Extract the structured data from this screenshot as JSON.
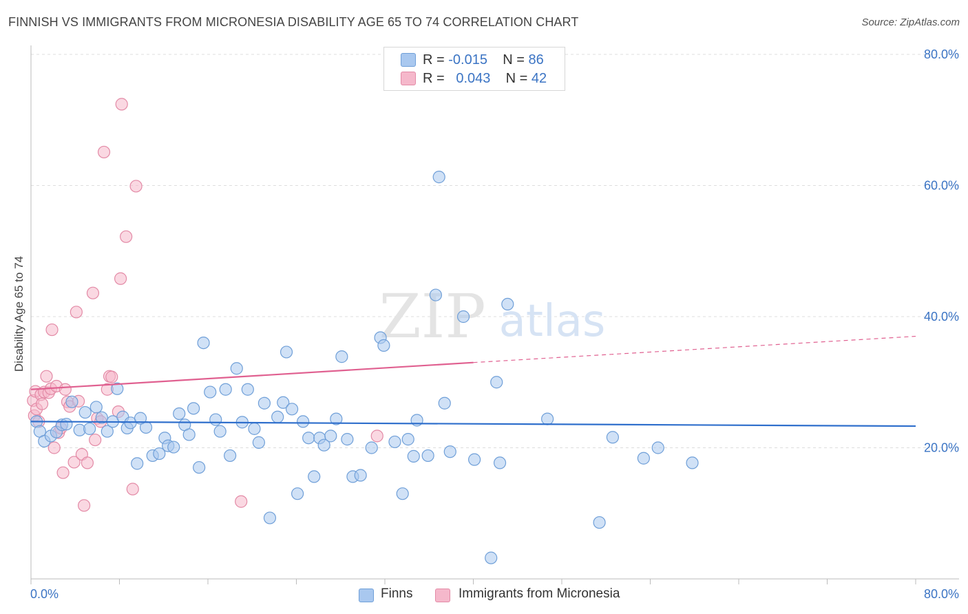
{
  "title": "FINNISH VS IMMIGRANTS FROM MICRONESIA DISABILITY AGE 65 TO 74 CORRELATION CHART",
  "source": "Source: ZipAtlas.com",
  "watermark": {
    "zip": "ZIP",
    "atlas": "atlas"
  },
  "legend": {
    "r_label": "R =",
    "n_label": "N =",
    "series": [
      {
        "name": "Finns",
        "r": "-0.015",
        "n": "86",
        "color": "#a9c8ef",
        "stroke": "#6f9fd8"
      },
      {
        "name": "Immigrants from Micronesia",
        "r": " 0.043",
        "n": "42",
        "color": "#f5b8cb",
        "stroke": "#e38aa6"
      }
    ]
  },
  "chart_data": {
    "type": "scatter",
    "title": "FINNISH VS IMMIGRANTS FROM MICRONESIA DISABILITY AGE 65 TO 74 CORRELATION CHART",
    "xlabel": "",
    "ylabel": "Disability Age 65 to 74",
    "xlim": [
      0,
      80
    ],
    "ylim": [
      0,
      80
    ],
    "x_tick_labels": [
      "0.0%",
      "80.0%"
    ],
    "y_tick_labels": [
      "20.0%",
      "40.0%",
      "60.0%",
      "80.0%"
    ],
    "y_ticks": [
      20,
      40,
      60,
      80
    ],
    "series": [
      {
        "name": "Finns",
        "color": "#a9c8ef",
        "stroke": "#6f9fd8",
        "trend": {
          "x": [
            0,
            80
          ],
          "y": [
            24.0,
            23.3
          ],
          "color": "#2f6fcc"
        },
        "points": [
          [
            0.5,
            24.0
          ],
          [
            0.8,
            22.5
          ],
          [
            1.2,
            21.0
          ],
          [
            1.8,
            21.8
          ],
          [
            2.3,
            22.4
          ],
          [
            2.8,
            23.5
          ],
          [
            3.2,
            23.6
          ],
          [
            3.7,
            27.0
          ],
          [
            4.4,
            22.7
          ],
          [
            4.9,
            25.4
          ],
          [
            5.3,
            22.9
          ],
          [
            5.9,
            26.2
          ],
          [
            6.4,
            24.6
          ],
          [
            6.9,
            22.5
          ],
          [
            7.4,
            24.0
          ],
          [
            7.8,
            29.0
          ],
          [
            8.3,
            24.7
          ],
          [
            8.7,
            23.0
          ],
          [
            9.0,
            23.8
          ],
          [
            9.6,
            17.6
          ],
          [
            10.4,
            23.1
          ],
          [
            11.0,
            18.8
          ],
          [
            11.6,
            19.1
          ],
          [
            12.1,
            21.5
          ],
          [
            12.4,
            20.3
          ],
          [
            12.9,
            20.1
          ],
          [
            13.4,
            25.2
          ],
          [
            13.9,
            23.5
          ],
          [
            14.3,
            22.0
          ],
          [
            14.7,
            26.0
          ],
          [
            15.2,
            17.0
          ],
          [
            15.6,
            36.0
          ],
          [
            16.2,
            28.5
          ],
          [
            16.7,
            24.3
          ],
          [
            17.1,
            22.5
          ],
          [
            17.6,
            28.9
          ],
          [
            18.0,
            18.8
          ],
          [
            18.6,
            32.1
          ],
          [
            19.1,
            23.9
          ],
          [
            19.6,
            28.9
          ],
          [
            20.2,
            22.9
          ],
          [
            20.6,
            20.8
          ],
          [
            21.1,
            26.8
          ],
          [
            21.6,
            9.3
          ],
          [
            22.3,
            24.7
          ],
          [
            22.8,
            26.9
          ],
          [
            23.1,
            34.6
          ],
          [
            23.6,
            25.9
          ],
          [
            24.1,
            13.0
          ],
          [
            24.6,
            24.0
          ],
          [
            25.1,
            21.5
          ],
          [
            25.6,
            15.6
          ],
          [
            26.1,
            21.5
          ],
          [
            26.5,
            20.4
          ],
          [
            27.1,
            21.8
          ],
          [
            27.6,
            24.4
          ],
          [
            28.1,
            33.9
          ],
          [
            28.6,
            21.3
          ],
          [
            29.1,
            15.6
          ],
          [
            29.8,
            15.8
          ],
          [
            30.8,
            20.0
          ],
          [
            31.6,
            36.8
          ],
          [
            31.9,
            35.6
          ],
          [
            32.9,
            20.9
          ],
          [
            33.6,
            13.0
          ],
          [
            34.1,
            21.3
          ],
          [
            34.6,
            18.7
          ],
          [
            34.9,
            24.2
          ],
          [
            35.9,
            18.8
          ],
          [
            36.6,
            43.3
          ],
          [
            36.9,
            61.3
          ],
          [
            37.4,
            26.8
          ],
          [
            37.9,
            19.4
          ],
          [
            39.1,
            40.0
          ],
          [
            40.1,
            18.2
          ],
          [
            42.1,
            30.0
          ],
          [
            42.4,
            17.7
          ],
          [
            43.1,
            41.9
          ],
          [
            46.7,
            24.4
          ],
          [
            51.4,
            8.6
          ],
          [
            52.6,
            21.6
          ],
          [
            55.4,
            18.4
          ],
          [
            56.7,
            20.0
          ],
          [
            59.8,
            17.7
          ],
          [
            41.6,
            3.2
          ],
          [
            9.9,
            24.5
          ]
        ]
      },
      {
        "name": "Immigrants from Micronesia",
        "color": "#f5b8cb",
        "stroke": "#e38aa6",
        "trend": {
          "x": [
            0,
            40
          ],
          "y": [
            28.9,
            33.0
          ],
          "color": "#e06090",
          "dash_to": [
            80,
            37.0
          ]
        },
        "points": [
          [
            0.2,
            27.2
          ],
          [
            0.3,
            24.9
          ],
          [
            0.4,
            28.6
          ],
          [
            0.5,
            25.9
          ],
          [
            0.7,
            24.0
          ],
          [
            0.9,
            28.1
          ],
          [
            1.0,
            26.7
          ],
          [
            1.2,
            28.5
          ],
          [
            1.4,
            30.9
          ],
          [
            1.6,
            28.4
          ],
          [
            1.8,
            29.0
          ],
          [
            2.1,
            20.0
          ],
          [
            2.3,
            29.4
          ],
          [
            2.5,
            22.3
          ],
          [
            2.7,
            23.0
          ],
          [
            2.9,
            16.2
          ],
          [
            3.1,
            28.9
          ],
          [
            3.3,
            27.0
          ],
          [
            3.5,
            26.3
          ],
          [
            3.9,
            17.8
          ],
          [
            4.1,
            40.7
          ],
          [
            4.3,
            27.1
          ],
          [
            4.6,
            19.0
          ],
          [
            4.8,
            11.2
          ],
          [
            5.1,
            17.7
          ],
          [
            5.6,
            43.6
          ],
          [
            5.8,
            21.2
          ],
          [
            6.0,
            24.5
          ],
          [
            6.3,
            24.0
          ],
          [
            6.6,
            65.1
          ],
          [
            6.9,
            28.9
          ],
          [
            7.1,
            30.9
          ],
          [
            7.3,
            30.8
          ],
          [
            7.9,
            25.5
          ],
          [
            8.1,
            45.8
          ],
          [
            8.2,
            72.4
          ],
          [
            8.6,
            52.2
          ],
          [
            9.2,
            13.7
          ],
          [
            9.5,
            59.9
          ],
          [
            19.0,
            11.8
          ],
          [
            31.3,
            21.8
          ],
          [
            1.9,
            38.0
          ]
        ]
      }
    ]
  },
  "axis_labels": {
    "y_label": "Disability Age 65 to 74",
    "x_min": "0.0%",
    "x_max": "80.0%"
  }
}
